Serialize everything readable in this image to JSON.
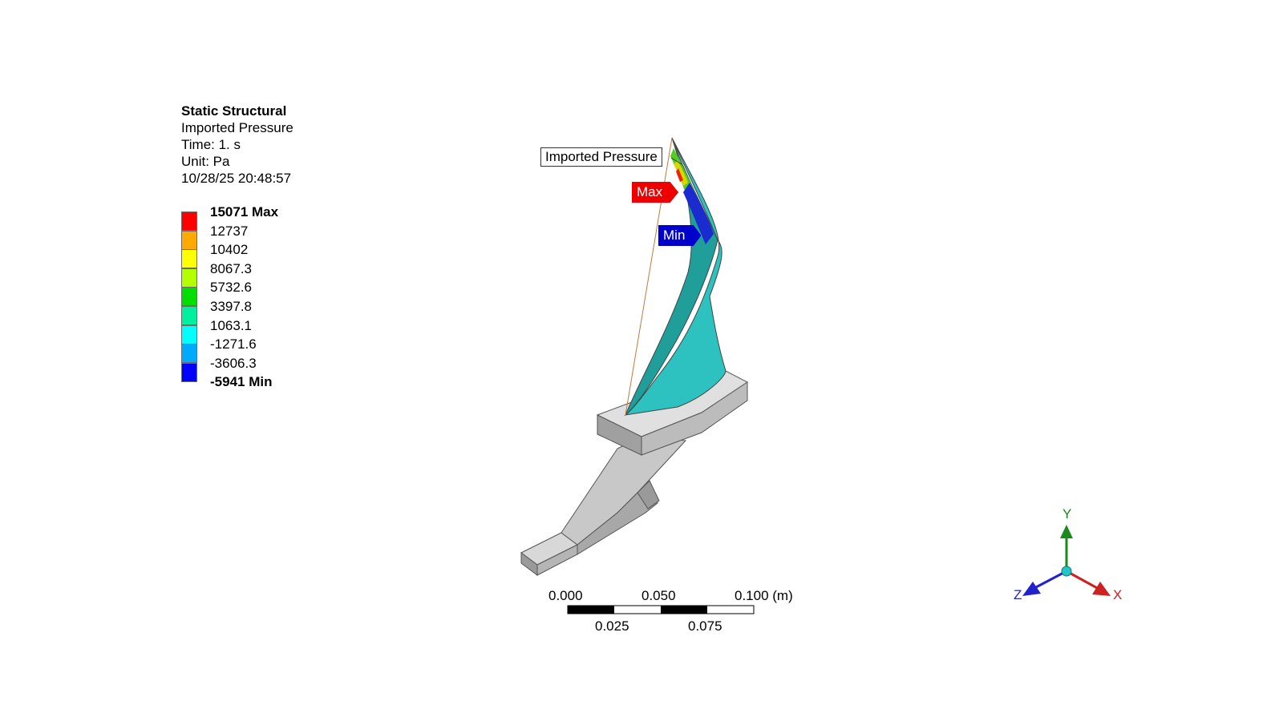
{
  "info": {
    "title": "Static Structural",
    "result_name": "Imported Pressure",
    "time": "Time: 1. s",
    "unit": "Unit: Pa",
    "timestamp": "10/28/25 20:48:57"
  },
  "legend": {
    "entries": [
      {
        "label": "15071 Max",
        "color": "#ff0000",
        "bold": true
      },
      {
        "label": "12737",
        "color": "#ffaa00"
      },
      {
        "label": "10402",
        "color": "#ffff00"
      },
      {
        "label": "8067.3",
        "color": "#b3ff00"
      },
      {
        "label": "5732.6",
        "color": "#00dd00"
      },
      {
        "label": "3397.8",
        "color": "#00f0a0"
      },
      {
        "label": "1063.1",
        "color": "#00ffff"
      },
      {
        "label": "-1271.6",
        "color": "#00aaff"
      },
      {
        "label": "-3606.3",
        "color": "#0000ff"
      },
      {
        "label": "-5941 Min",
        "color": "#0000cc",
        "bold": true
      }
    ]
  },
  "callouts": {
    "probe_label": "Imported Pressure",
    "max_label": "Max",
    "min_label": "Min",
    "max_color": "#ee0000",
    "min_color": "#0000cc"
  },
  "scale_bar": {
    "top_labels": [
      "0.000",
      "0.050",
      "0.100 (m)"
    ],
    "bottom_labels": [
      "0.025",
      "0.075"
    ]
  },
  "triad": {
    "x_label": "X",
    "y_label": "Y",
    "z_label": "Z",
    "x_color": "#cc2222",
    "y_color": "#1a8a1a",
    "z_color": "#2222cc"
  }
}
